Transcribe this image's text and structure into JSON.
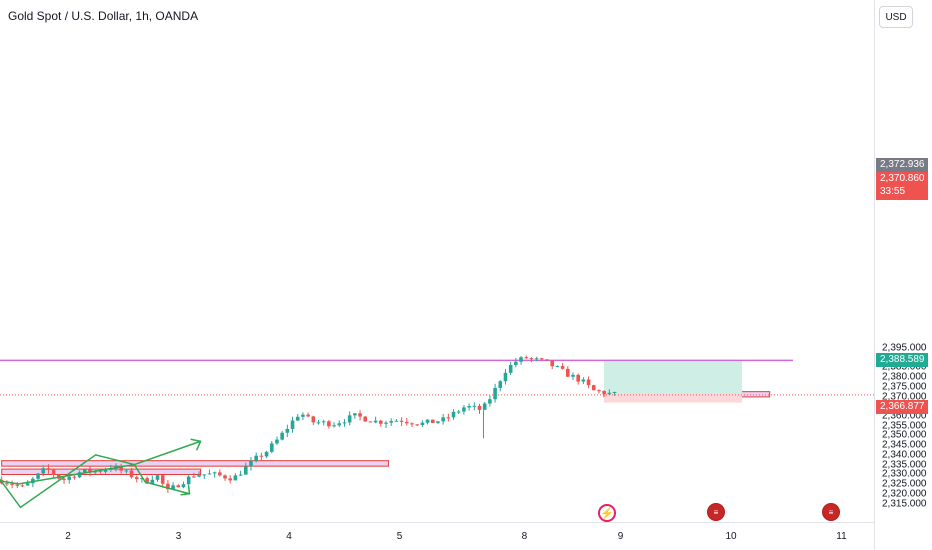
{
  "header": {
    "title": "Gold Spot / U.S. Dollar, 1h, OANDA",
    "currency_button": "USD"
  },
  "price_labels": {
    "target": "2,388.589",
    "prev_close": "2,372.936",
    "last": "2,370.860",
    "countdown": "33:55",
    "stop": "2,366.877"
  },
  "colors": {
    "bull": "#26a69a",
    "bear": "#ef5350",
    "pattern": "#2eaa4e",
    "resistance_line": "#ce69d6",
    "zone_fill": "#e1c3f0",
    "zone_border": "#e53935",
    "profit_fill": "#cfeee6",
    "loss_fill": "#fcd8da",
    "target_label": "#22ab94",
    "prev_close_label": "#787b86",
    "last_label": "#ef5350"
  },
  "events": [
    {
      "type": "earnings",
      "icon": "lightning-icon"
    },
    {
      "type": "economic",
      "icon": "us-flag-icon"
    },
    {
      "type": "economic",
      "icon": "us-flag-icon"
    }
  ],
  "chart_data": {
    "type": "candlestick",
    "title": "Gold Spot / U.S. Dollar, 1h, OANDA",
    "ylim": [
      2311,
      2398
    ],
    "xlim": [
      1.4,
      11.3
    ],
    "y_ticks": [
      "2,315.000",
      "2,320.000",
      "2,325.000",
      "2,330.000",
      "2,335.000",
      "2,340.000",
      "2,345.000",
      "2,350.000",
      "2,355.000",
      "2,360.000",
      "2,365.000",
      "2,370.000",
      "2,375.000",
      "2,380.000",
      "2,385.000",
      "2,390.000",
      "2,395.000"
    ],
    "y_tick_values": [
      2315,
      2320,
      2325,
      2330,
      2335,
      2340,
      2345,
      2350,
      2355,
      2360,
      2365,
      2370,
      2375,
      2380,
      2385,
      2390,
      2395
    ],
    "x_ticks": [
      "2",
      "3",
      "4",
      "5",
      "8",
      "9",
      "10",
      "11"
    ],
    "x_tick_values": [
      2,
      3,
      4,
      5,
      6.13,
      7,
      8,
      9
    ],
    "candle_waypoints": [
      [
        1.4,
        2327
      ],
      [
        1.6,
        2323
      ],
      [
        1.8,
        2333
      ],
      [
        1.95,
        2327
      ],
      [
        2.1,
        2331
      ],
      [
        2.3,
        2332
      ],
      [
        2.4,
        2334
      ],
      [
        2.55,
        2330
      ],
      [
        2.7,
        2326
      ],
      [
        2.8,
        2330
      ],
      [
        2.9,
        2321
      ],
      [
        3.0,
        2325
      ],
      [
        3.15,
        2330
      ],
      [
        3.3,
        2330
      ],
      [
        3.5,
        2328
      ],
      [
        3.6,
        2333
      ],
      [
        3.7,
        2338
      ],
      [
        3.8,
        2342
      ],
      [
        3.9,
        2348
      ],
      [
        4.0,
        2355
      ],
      [
        4.1,
        2362
      ],
      [
        4.2,
        2357
      ],
      [
        4.4,
        2356
      ],
      [
        4.6,
        2360
      ],
      [
        4.8,
        2357
      ],
      [
        5.0,
        2358
      ],
      [
        5.2,
        2356
      ],
      [
        5.4,
        2358
      ],
      [
        5.6,
        2365
      ],
      [
        5.75,
        2363
      ],
      [
        5.85,
        2372
      ],
      [
        5.95,
        2383
      ],
      [
        6.05,
        2388
      ],
      [
        6.15,
        2390
      ],
      [
        6.35,
        2387
      ],
      [
        6.5,
        2382
      ],
      [
        6.65,
        2378
      ],
      [
        6.75,
        2373
      ],
      [
        6.85,
        2372
      ],
      [
        6.95,
        2371
      ]
    ],
    "candle_step": 0.047,
    "candle_seed": 7,
    "levels": {
      "resistance": 2388.589,
      "last_price": 2370.86
    },
    "zones": [
      {
        "x0": 1.4,
        "x1": 4.9,
        "y0": 2334.2,
        "y1": 2337.0
      },
      {
        "x0": 1.4,
        "x1": 3.2,
        "y0": 2329.9,
        "y1": 2332.7
      },
      {
        "x0": 6.85,
        "x1": 8.35,
        "y0": 2369.8,
        "y1": 2372.5
      }
    ],
    "position": {
      "x0": 6.85,
      "x1": 8.1,
      "entry": 2371.3,
      "target": 2388.589,
      "stop": 2366.877
    },
    "pattern_path": [
      [
        1.35,
        2330
      ],
      [
        1.57,
        2313
      ],
      [
        2.25,
        2340
      ],
      [
        2.6,
        2335
      ],
      [
        3.2,
        2347
      ]
    ],
    "pattern_path2": [
      [
        1.35,
        2327
      ],
      [
        1.55,
        2325
      ],
      [
        2.6,
        2335
      ],
      [
        2.7,
        2326
      ],
      [
        3.1,
        2320
      ]
    ]
  }
}
